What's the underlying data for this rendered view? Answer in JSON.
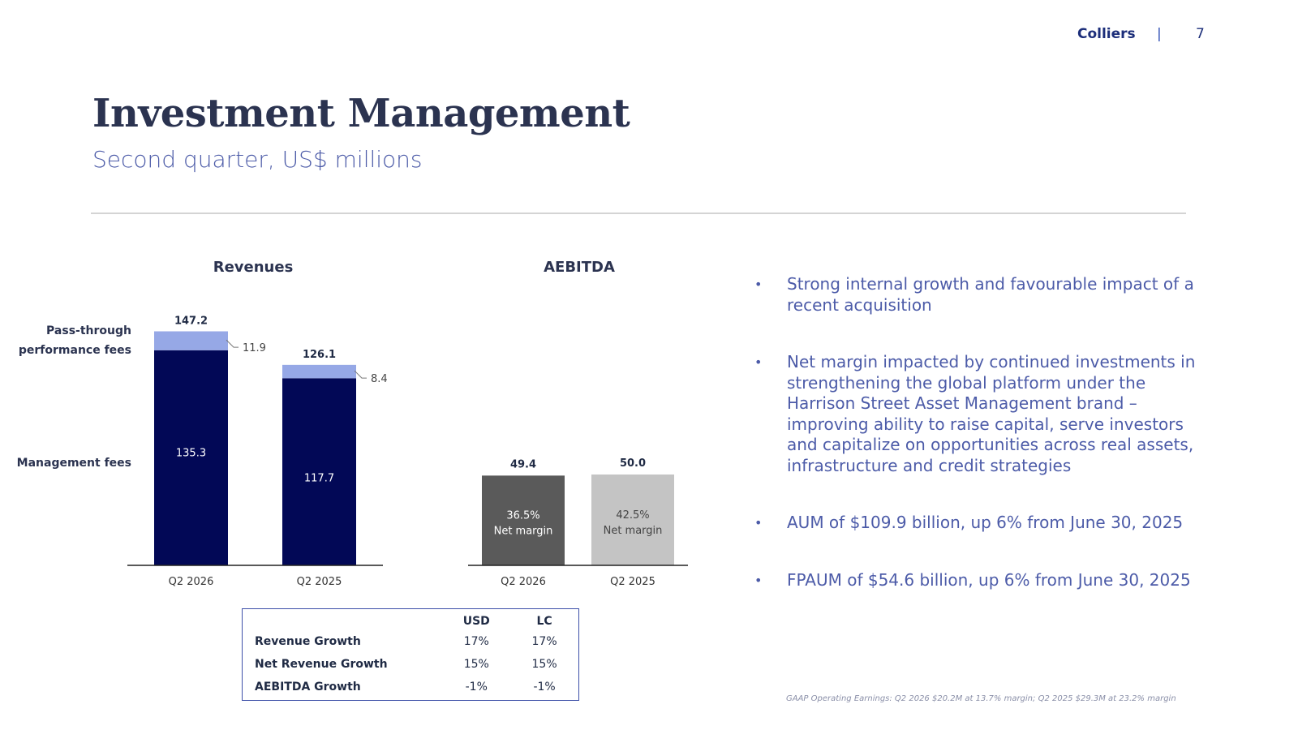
{
  "header": {
    "brand": "Colliers",
    "separator": "|",
    "page_number": "7"
  },
  "title": "Investment Management",
  "subtitle": "Second quarter, US$ millions",
  "colors": {
    "management_fees": "#020856",
    "pass_through": "#96a8e6",
    "aebitda_2026": "#5a5a5a",
    "aebitda_2025": "#c4c4c4",
    "accent": "#4c5ba8"
  },
  "chart_data": [
    {
      "type": "bar",
      "stacked": true,
      "title": "Revenues",
      "categories": [
        "Q2 2026",
        "Q2 2025"
      ],
      "series": [
        {
          "name": "Management fees",
          "values": [
            135.3,
            117.7
          ]
        },
        {
          "name": "Pass-through performance fees",
          "values": [
            11.9,
            8.4
          ]
        }
      ],
      "totals": [
        147.2,
        126.1
      ],
      "legend_placement": "left"
    },
    {
      "type": "bar",
      "title": "AEBITDA",
      "categories": [
        "Q2 2026",
        "Q2 2025"
      ],
      "values": [
        49.4,
        50.0
      ],
      "margins": [
        "36.5%",
        "42.5%"
      ],
      "margin_label": "Net margin"
    }
  ],
  "growth_table": {
    "headers": [
      "",
      "USD",
      "LC"
    ],
    "rows": [
      {
        "label": "Revenue Growth",
        "usd": "17%",
        "lc": "17%"
      },
      {
        "label": "Net Revenue Growth",
        "usd": "15%",
        "lc": "15%"
      },
      {
        "label": "AEBITDA Growth",
        "usd": "-1%",
        "lc": "-1%"
      }
    ]
  },
  "bullets": [
    "Strong internal growth and favourable impact of a recent acquisition",
    "Net margin impacted by continued investments in strengthening the global platform under the Harrison Street Asset Management brand – improving ability to raise capital, serve investors and capitalize on opportunities across real assets, infrastructure and credit strategies",
    "AUM of $109.9 billion, up 6% from June 30, 2025",
    "FPAUM of $54.6 billion, up 6% from June 30, 2025"
  ],
  "bullet_glyph": "•",
  "footnote": "GAAP Operating Earnings: Q2 2026 $20.2M at 13.7% margin; Q2 2025 $29.3M at 23.2% margin"
}
